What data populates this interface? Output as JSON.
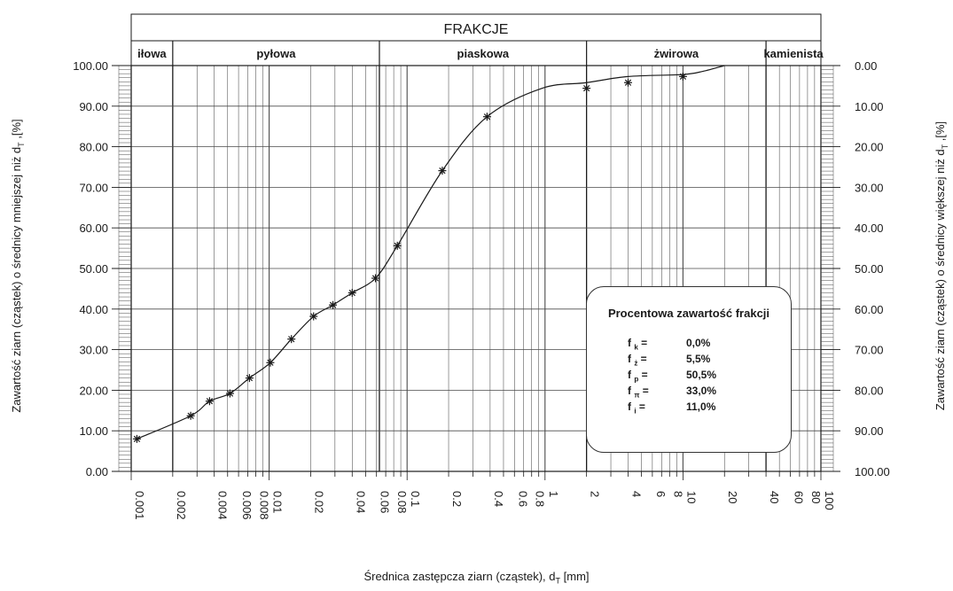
{
  "chart_data": {
    "type": "line",
    "title": "FRAKCJE",
    "xscale": "log",
    "xlim": [
      0.001,
      100
    ],
    "ylim": [
      0,
      100
    ],
    "xlabel": "Średnica zastępcza ziarn (cząstek), d",
    "xlabel_sub": "T",
    "xlabel_unit": " [mm]",
    "ylabel_left": "Zawartość ziarn (cząstek) o średnicy mniejszej niż d",
    "ylabel_left_sub": "T",
    "ylabel_left_unit": " ,[%]",
    "ylabel_right": "Zawartość ziarn (cząstek) o średnicy większej niż d",
    "ylabel_right_sub": "T",
    "ylabel_right_unit": " ,[%]",
    "y_ticks_left": [
      "0.00",
      "10.00",
      "20.00",
      "30.00",
      "40.00",
      "50.00",
      "60.00",
      "70.00",
      "80.00",
      "90.00",
      "100.00"
    ],
    "y_ticks_right": [
      "100.00",
      "90.00",
      "80.00",
      "70.00",
      "60.00",
      "50.00",
      "40.00",
      "30.00",
      "20.00",
      "10.00",
      "0.00"
    ],
    "x_tick_labels": [
      {
        "value": 0.001,
        "label": "0.001"
      },
      {
        "value": 0.002,
        "label": "0.002"
      },
      {
        "value": 0.004,
        "label": "0.004"
      },
      {
        "value": 0.006,
        "label": "0.006"
      },
      {
        "value": 0.008,
        "label": "0.008"
      },
      {
        "value": 0.01,
        "label": "0.01"
      },
      {
        "value": 0.02,
        "label": "0.02"
      },
      {
        "value": 0.04,
        "label": "0.04"
      },
      {
        "value": 0.06,
        "label": "0.06"
      },
      {
        "value": 0.08,
        "label": "0.08"
      },
      {
        "value": 0.1,
        "label": "0.1"
      },
      {
        "value": 0.2,
        "label": "0.2"
      },
      {
        "value": 0.4,
        "label": "0.4"
      },
      {
        "value": 0.6,
        "label": "0.6"
      },
      {
        "value": 0.8,
        "label": "0.8"
      },
      {
        "value": 1,
        "label": "1"
      },
      {
        "value": 2,
        "label": "2"
      },
      {
        "value": 4,
        "label": "4"
      },
      {
        "value": 6,
        "label": "6"
      },
      {
        "value": 8,
        "label": "8"
      },
      {
        "value": 10,
        "label": "10"
      },
      {
        "value": 20,
        "label": "20"
      },
      {
        "value": 40,
        "label": "40"
      },
      {
        "value": 60,
        "label": "60"
      },
      {
        "value": 80,
        "label": "80"
      },
      {
        "value": 100,
        "label": "100"
      }
    ],
    "fractions": [
      {
        "label": "iłowa",
        "from": 0.001,
        "to": 0.002
      },
      {
        "label": "pyłowa",
        "from": 0.002,
        "to": 0.063
      },
      {
        "label": "piaskowa",
        "from": 0.063,
        "to": 2
      },
      {
        "label": "żwirowa",
        "from": 2,
        "to": 40
      },
      {
        "label": "kamienista",
        "from": 40,
        "to": 100
      }
    ],
    "series": [
      {
        "x": [
          0.0011,
          0.0027,
          0.0037,
          0.0052,
          0.0072,
          0.0102,
          0.0145,
          0.021,
          0.029,
          0.04,
          0.059,
          0.085,
          0.18,
          0.38,
          0.95,
          2.0,
          4.0,
          10,
          14,
          20
        ],
        "y": [
          8.0,
          13.7,
          17.3,
          19.2,
          23.0,
          26.8,
          32.6,
          38.2,
          41.0,
          44.0,
          47.6,
          55.6,
          74.1,
          87.4,
          94.4,
          95.8,
          97.3,
          97.8,
          98.6,
          100.0
        ],
        "marker_x": [
          0.0011,
          0.0027,
          0.0037,
          0.0052,
          0.0072,
          0.0102,
          0.0145,
          0.021,
          0.029,
          0.04,
          0.059,
          0.085,
          0.18,
          0.38,
          2.0,
          4.0,
          10
        ],
        "marker_y": [
          8.0,
          13.7,
          17.3,
          19.2,
          23.0,
          26.8,
          32.6,
          38.2,
          41.0,
          44.0,
          47.6,
          55.6,
          74.1,
          87.4,
          94.4,
          95.8,
          97.3
        ]
      }
    ],
    "grid": true
  },
  "info_box": {
    "title": "Procentowa zawartość frakcji",
    "rows": [
      {
        "symbol": "f",
        "sub": "k",
        "value": "0,0%"
      },
      {
        "symbol": "f",
        "sub": "ż",
        "value": "5,5%"
      },
      {
        "symbol": "f",
        "sub": "p",
        "value": "50,5%"
      },
      {
        "symbol": "f",
        "sub": "π",
        "value": "33,0%"
      },
      {
        "symbol": "f",
        "sub": "i",
        "value": "11,0%"
      }
    ]
  },
  "colors": {
    "line": "#1a1a1a",
    "grid": "#4a4a4a",
    "background": "#ffffff"
  }
}
